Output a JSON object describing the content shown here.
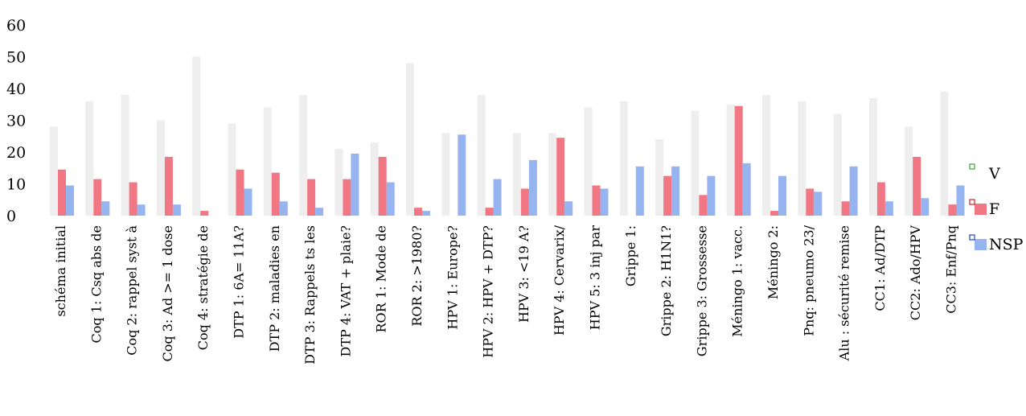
{
  "chart_data": {
    "type": "bar",
    "categories": [
      "schéma initial",
      "Coq 1: Csq abs de",
      "Coq 2: rappel syst à",
      "Coq 3: Ad >= 1 dose",
      "Coq 4: stratégie de",
      "DTP 1: 6A= 11A?",
      "DTP 2: maladies en",
      "DTP 3: Rappels ts les",
      "DTP 4: VAT + plaie?",
      "ROR 1: Mode de",
      "ROR 2: >1980?",
      "HPV 1: Europe?",
      "HPV 2: HPV + DTP?",
      "HPV 3: <19 A?",
      "HPV 4: Cervarix/",
      "HPV 5: 3 inj par",
      "Grippe 1:",
      "Grippe 2: H1N1?",
      "Grippe 3: Grossesse",
      "Méningo 1: vacc.",
      "Méningo 2:",
      "Pnq: pneumo 23/",
      "Alu : sécurité remise",
      "CC1: Ad/DTP",
      "CC2: Ado/HPV",
      "CC3: Enf/Pnq"
    ],
    "series": [
      {
        "name": "V",
        "color": "#eeeeee",
        "values": [
          28,
          36,
          38,
          30,
          50,
          29,
          34,
          38,
          21,
          23,
          48,
          26,
          38,
          26,
          26,
          34,
          36,
          24,
          33,
          35,
          38,
          36,
          32,
          37,
          28,
          39
        ]
      },
      {
        "name": "F",
        "color": "#f07783",
        "values": [
          14.5,
          11.5,
          10.5,
          18.5,
          1.5,
          14.5,
          13.5,
          11.5,
          11.5,
          18.5,
          2.5,
          0,
          2.5,
          8.5,
          24.5,
          9.5,
          0,
          12.5,
          6.5,
          34.5,
          1.5,
          8.5,
          4.5,
          10.5,
          18.5,
          3.5
        ]
      },
      {
        "name": "NSP",
        "color": "#96b4ef",
        "values": [
          9.5,
          4.5,
          3.5,
          3.5,
          0,
          8.5,
          4.5,
          2.5,
          19.5,
          10.5,
          1.5,
          25.5,
          11.5,
          17.5,
          4.5,
          8.5,
          15.5,
          15.5,
          12.5,
          16.5,
          12.5,
          7.5,
          15.5,
          4.5,
          5.5,
          9.5
        ]
      }
    ],
    "yticks": [
      "0",
      "10",
      "20",
      "30",
      "40",
      "50",
      "60"
    ],
    "ylim": [
      0,
      60
    ],
    "grid": false,
    "legend_position": "right",
    "legend_marker_colors": [
      "#33aa33",
      "#cc2222",
      "#2244cc"
    ]
  }
}
